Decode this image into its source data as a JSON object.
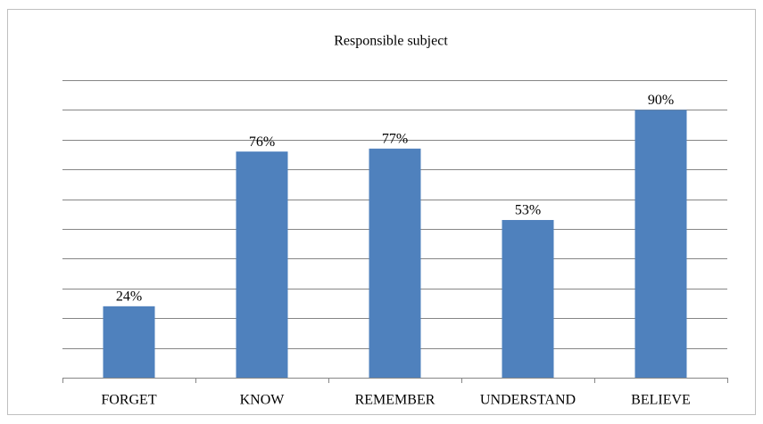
{
  "chart_data": {
    "type": "bar",
    "title": "Responsible subject",
    "categories": [
      "FORGET",
      "KNOW",
      "REMEMBER",
      "UNDERSTAND",
      "BELIEVE"
    ],
    "values": [
      24,
      76,
      77,
      53,
      90
    ],
    "value_labels": [
      "24%",
      "76%",
      "77%",
      "53%",
      "90%"
    ],
    "color": "#4f81bd",
    "ylim": [
      0,
      100
    ],
    "yticks": [
      0,
      10,
      20,
      30,
      40,
      50,
      60,
      70,
      80,
      90,
      100
    ],
    "grid": true
  }
}
